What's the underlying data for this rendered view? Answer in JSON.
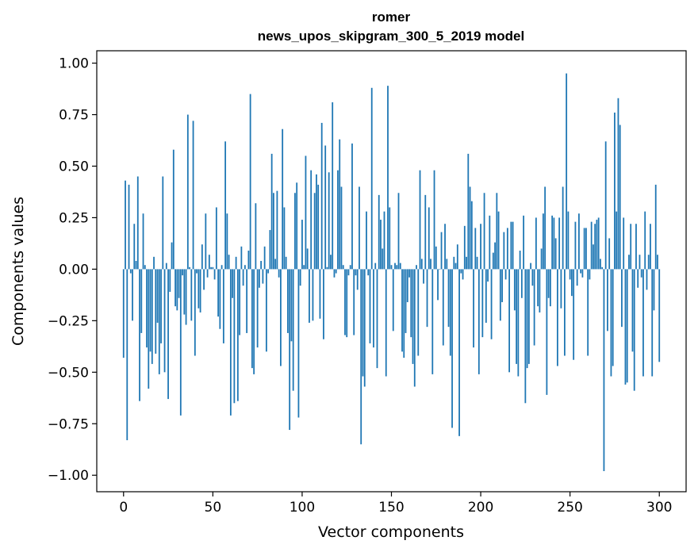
{
  "chart_data": {
    "type": "bar",
    "title": "romer",
    "subtitle": "news_upos_skipgram_300_5_2019 model",
    "xlabel": "Vector components",
    "ylabel": "Components values",
    "xlim": [
      -15,
      315
    ],
    "ylim": [
      -1.08,
      1.06
    ],
    "xticks": [
      0,
      50,
      100,
      150,
      200,
      250,
      300
    ],
    "yticks": [
      -1.0,
      -0.75,
      -0.5,
      -0.25,
      0.0,
      0.25,
      0.5,
      0.75,
      1.0
    ],
    "xtick_labels": [
      "0",
      "50",
      "100",
      "150",
      "200",
      "250",
      "300"
    ],
    "ytick_labels": [
      "−1.00",
      "−0.75",
      "−0.50",
      "−0.25",
      "0.00",
      "0.25",
      "0.50",
      "0.75",
      "1.00"
    ],
    "bar_color": "#1f77b4",
    "values": [
      -0.43,
      0.43,
      -0.83,
      0.41,
      -0.02,
      -0.25,
      0.22,
      0.04,
      0.45,
      -0.64,
      -0.31,
      0.27,
      0.02,
      -0.38,
      -0.58,
      -0.4,
      -0.46,
      0.06,
      -0.41,
      -0.26,
      -0.51,
      -0.36,
      0.45,
      -0.5,
      0.03,
      -0.63,
      -0.11,
      0.13,
      0.58,
      -0.18,
      -0.2,
      -0.14,
      -0.71,
      -0.03,
      -0.22,
      -0.27,
      0.75,
      0.01,
      -0.25,
      0.72,
      -0.42,
      -0.02,
      -0.19,
      -0.21,
      0.12,
      -0.1,
      0.27,
      -0.04,
      0.07,
      0.01,
      0.01,
      -0.05,
      0.3,
      -0.23,
      -0.29,
      0.02,
      -0.36,
      0.62,
      0.27,
      0.07,
      -0.71,
      -0.14,
      -0.65,
      0.06,
      -0.64,
      -0.32,
      0.11,
      -0.08,
      0.02,
      -0.31,
      0.09,
      0.85,
      -0.48,
      -0.51,
      0.32,
      -0.38,
      -0.09,
      0.04,
      -0.07,
      0.11,
      -0.4,
      -0.02,
      0.19,
      0.56,
      0.37,
      0.05,
      0.38,
      -0.04,
      -0.47,
      0.68,
      0.3,
      0.06,
      -0.31,
      -0.78,
      -0.35,
      -0.59,
      0.37,
      0.42,
      -0.72,
      -0.08,
      0.24,
      0.02,
      0.55,
      0.1,
      -0.26,
      0.48,
      -0.25,
      0.37,
      0.46,
      0.41,
      -0.24,
      0.71,
      -0.34,
      0.6,
      0.01,
      0.47,
      0.07,
      0.81,
      -0.04,
      -0.02,
      0.48,
      0.63,
      0.4,
      0.02,
      -0.32,
      -0.33,
      -0.03,
      0.02,
      0.61,
      -0.32,
      -0.03,
      -0.1,
      0.4,
      -0.85,
      -0.52,
      -0.57,
      0.28,
      -0.03,
      -0.36,
      0.88,
      -0.38,
      0.03,
      -0.48,
      0.36,
      0.24,
      0.1,
      0.28,
      -0.52,
      0.89,
      0.3,
      0.02,
      -0.3,
      0.03,
      0.02,
      0.37,
      0.03,
      -0.4,
      -0.43,
      -0.31,
      -0.16,
      -0.04,
      -0.33,
      -0.46,
      -0.57,
      0.02,
      -0.42,
      0.48,
      0.05,
      -0.07,
      0.36,
      -0.28,
      0.3,
      0.05,
      -0.51,
      0.48,
      0.11,
      -0.15,
      0.0,
      0.18,
      -0.37,
      0.22,
      0.05,
      -0.28,
      -0.42,
      -0.77,
      0.06,
      0.03,
      0.12,
      -0.81,
      -0.02,
      -0.05,
      0.21,
      0.06,
      0.56,
      0.4,
      0.33,
      -0.38,
      0.2,
      0.06,
      -0.51,
      0.22,
      -0.33,
      0.37,
      -0.26,
      -0.06,
      0.26,
      -0.34,
      0.08,
      0.13,
      0.37,
      0.28,
      -0.25,
      -0.16,
      0.18,
      -0.05,
      0.2,
      -0.5,
      0.23,
      0.23,
      -0.2,
      -0.46,
      -0.52,
      0.09,
      -0.14,
      0.26,
      -0.65,
      -0.48,
      -0.46,
      0.03,
      -0.08,
      -0.37,
      0.25,
      -0.18,
      -0.21,
      0.1,
      0.27,
      0.4,
      -0.61,
      -0.14,
      -0.18,
      0.26,
      0.25,
      0.15,
      -0.47,
      0.25,
      -0.19,
      0.4,
      -0.42,
      0.95,
      0.28,
      -0.05,
      -0.13,
      -0.44,
      0.23,
      -0.08,
      0.27,
      -0.02,
      -0.04,
      0.2,
      0.2,
      -0.42,
      -0.05,
      0.23,
      0.12,
      0.22,
      0.24,
      0.25,
      0.05,
      0.01,
      -0.98,
      0.62,
      -0.3,
      0.15,
      -0.52,
      -0.47,
      0.76,
      0.28,
      0.83,
      0.7,
      -0.28,
      0.25,
      -0.56,
      -0.55,
      0.07,
      0.22,
      -0.4,
      -0.59,
      0.22,
      -0.09,
      0.07,
      -0.04,
      -0.52,
      0.28,
      -0.1,
      0.07,
      0.22,
      -0.52,
      -0.2,
      0.41,
      0.07,
      -0.45
    ]
  }
}
